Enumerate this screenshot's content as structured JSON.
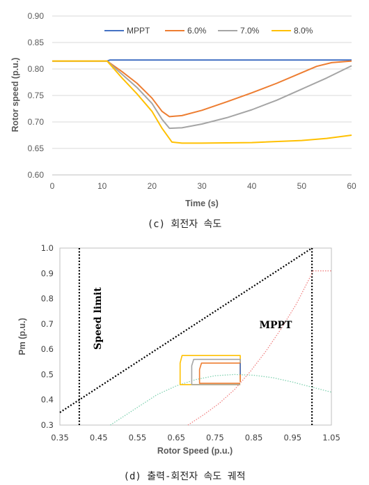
{
  "chart_data": [
    {
      "type": "line",
      "caption": "(c) 회전자 속도",
      "xlabel": "Time (s)",
      "ylabel": "Rotor speed (p.u.)",
      "xlim": [
        0,
        60
      ],
      "ylim": [
        0.6,
        0.9
      ],
      "xticks": [
        "0",
        "10",
        "20",
        "30",
        "40",
        "50",
        "60"
      ],
      "yticks": [
        "0.60",
        "0.65",
        "0.70",
        "0.75",
        "0.80",
        "0.85",
        "0.90"
      ],
      "grid": "horizontal",
      "legend_position": "top",
      "series": [
        {
          "name": "MPPT",
          "color": "#4472c4",
          "points": [
            [
              0,
              0.815
            ],
            [
              11,
              0.815
            ],
            [
              11.6,
              0.817
            ],
            [
              60,
              0.817
            ]
          ]
        },
        {
          "name": "6.0%",
          "color": "#ed7d31",
          "points": [
            [
              0,
              0.815
            ],
            [
              11,
              0.815
            ],
            [
              14,
              0.795
            ],
            [
              17,
              0.773
            ],
            [
              20,
              0.745
            ],
            [
              22,
              0.72
            ],
            [
              23.5,
              0.71
            ],
            [
              26,
              0.712
            ],
            [
              30,
              0.722
            ],
            [
              35,
              0.738
            ],
            [
              40,
              0.755
            ],
            [
              45,
              0.773
            ],
            [
              50,
              0.793
            ],
            [
              53,
              0.805
            ],
            [
              56,
              0.812
            ],
            [
              60,
              0.815
            ]
          ]
        },
        {
          "name": "7.0%",
          "color": "#a5a5a5",
          "points": [
            [
              0,
              0.815
            ],
            [
              11,
              0.815
            ],
            [
              14,
              0.79
            ],
            [
              17,
              0.765
            ],
            [
              20,
              0.735
            ],
            [
              22,
              0.705
            ],
            [
              23.5,
              0.688
            ],
            [
              26,
              0.689
            ],
            [
              30,
              0.696
            ],
            [
              35,
              0.708
            ],
            [
              40,
              0.723
            ],
            [
              45,
              0.741
            ],
            [
              50,
              0.762
            ],
            [
              55,
              0.783
            ],
            [
              60,
              0.806
            ]
          ]
        },
        {
          "name": "8.0%",
          "color": "#ffc000",
          "points": [
            [
              0,
              0.815
            ],
            [
              11,
              0.815
            ],
            [
              14,
              0.783
            ],
            [
              17,
              0.753
            ],
            [
              20,
              0.72
            ],
            [
              22,
              0.688
            ],
            [
              24,
              0.662
            ],
            [
              26,
              0.66
            ],
            [
              30,
              0.66
            ],
            [
              40,
              0.661
            ],
            [
              50,
              0.665
            ],
            [
              55,
              0.669
            ],
            [
              60,
              0.675
            ]
          ]
        }
      ]
    },
    {
      "type": "line",
      "caption": "(d) 출력-회전자 속도 궤적",
      "xlabel": "Rotor Speed (p.u.)",
      "ylabel": "Pm (p.u.)",
      "xlim": [
        0.35,
        1.05
      ],
      "ylim": [
        0.3,
        1.0
      ],
      "xticks": [
        "0.35",
        "0.45",
        "0.55",
        "0.65",
        "0.75",
        "0.85",
        "0.95",
        "1.05"
      ],
      "yticks": [
        "0.3",
        "0.4",
        "0.5",
        "0.6",
        "0.7",
        "0.8",
        "0.9",
        "1.0"
      ],
      "annotations": [
        "Speed limit",
        "MPPT"
      ],
      "series": [
        {
          "name": "",
          "style": "dotted",
          "color": "#000000",
          "points": [
            [
              0.35,
              0.35
            ],
            [
              1.0,
              1.0
            ]
          ]
        },
        {
          "name": "",
          "style": "dotted",
          "color": "#000000",
          "points": [
            [
              0.4,
              0.3
            ],
            [
              0.4,
              1.0
            ]
          ]
        },
        {
          "name": "",
          "style": "dotted",
          "color": "#000000",
          "points": [
            [
              1.0,
              0.3
            ],
            [
              1.0,
              1.0
            ]
          ]
        },
        {
          "name": "",
          "style": "dotted",
          "color": "#7fd1b0",
          "points": [
            [
              0.48,
              0.3
            ],
            [
              0.52,
              0.34
            ],
            [
              0.56,
              0.38
            ],
            [
              0.6,
              0.42
            ],
            [
              0.65,
              0.455
            ],
            [
              0.7,
              0.48
            ],
            [
              0.75,
              0.495
            ],
            [
              0.8,
              0.5
            ],
            [
              0.85,
              0.497
            ],
            [
              0.9,
              0.487
            ],
            [
              0.95,
              0.47
            ],
            [
              1.0,
              0.45
            ],
            [
              1.05,
              0.43
            ]
          ]
        },
        {
          "name": "",
          "style": "dotted",
          "color": "#f08080",
          "points": [
            [
              0.68,
              0.3
            ],
            [
              0.72,
              0.34
            ],
            [
              0.76,
              0.385
            ],
            [
              0.8,
              0.44
            ],
            [
              0.84,
              0.51
            ],
            [
              0.88,
              0.59
            ],
            [
              0.92,
              0.68
            ],
            [
              0.96,
              0.78
            ],
            [
              1.0,
              0.9
            ],
            [
              1.0,
              0.91
            ],
            [
              1.05,
              0.91
            ]
          ]
        },
        {
          "name": "",
          "style": "solid",
          "color": "#ffc000",
          "points": [
            [
              0.815,
              0.48
            ],
            [
              0.815,
              0.575
            ],
            [
              0.665,
              0.575
            ],
            [
              0.66,
              0.545
            ],
            [
              0.66,
              0.46
            ],
            [
              0.815,
              0.46
            ]
          ]
        },
        {
          "name": "",
          "style": "solid",
          "color": "#a5a5a5",
          "points": [
            [
              0.815,
              0.47
            ],
            [
              0.815,
              0.56
            ],
            [
              0.695,
              0.56
            ],
            [
              0.69,
              0.535
            ],
            [
              0.69,
              0.46
            ],
            [
              0.815,
              0.46
            ]
          ]
        },
        {
          "name": "",
          "style": "solid",
          "color": "#ed7d31",
          "points": [
            [
              0.815,
              0.47
            ],
            [
              0.815,
              0.545
            ],
            [
              0.715,
              0.545
            ],
            [
              0.71,
              0.52
            ],
            [
              0.71,
              0.465
            ],
            [
              0.815,
              0.465
            ]
          ]
        },
        {
          "name": "",
          "style": "solid",
          "color": "#4472c4",
          "points": [
            [
              0.815,
              0.5
            ],
            [
              0.815,
              0.545
            ]
          ]
        }
      ]
    }
  ]
}
